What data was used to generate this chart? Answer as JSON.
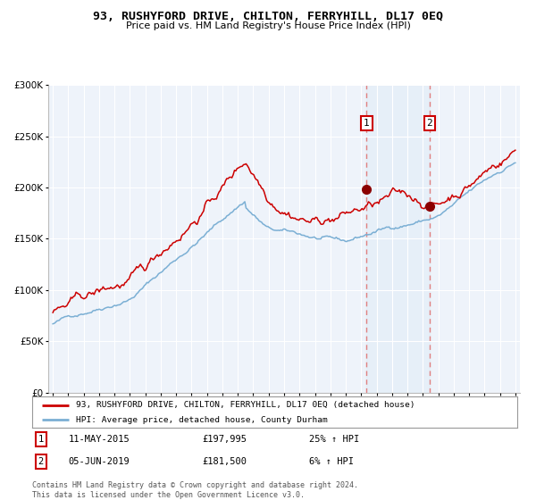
{
  "title": "93, RUSHYFORD DRIVE, CHILTON, FERRYHILL, DL17 0EQ",
  "subtitle": "Price paid vs. HM Land Registry's House Price Index (HPI)",
  "legend_line1": "93, RUSHYFORD DRIVE, CHILTON, FERRYHILL, DL17 0EQ (detached house)",
  "legend_line2": "HPI: Average price, detached house, County Durham",
  "transaction1_date": "11-MAY-2015",
  "transaction1_price": "£197,995",
  "transaction1_hpi": "25% ↑ HPI",
  "transaction2_date": "05-JUN-2019",
  "transaction2_price": "£181,500",
  "transaction2_hpi": "6% ↑ HPI",
  "footer": "Contains HM Land Registry data © Crown copyright and database right 2024.\nThis data is licensed under the Open Government Licence v3.0.",
  "hpi_color": "#7bafd4",
  "price_color": "#cc0000",
  "marker_color": "#8b0000",
  "shade_color": "#dbeaf6",
  "dashed_color": "#e08080",
  "background_color": "#eef3fa",
  "grid_color": "#ffffff",
  "ylim": [
    0,
    300000
  ],
  "yticks": [
    0,
    50000,
    100000,
    150000,
    200000,
    250000,
    300000
  ],
  "year_start": 1995,
  "year_end": 2025,
  "t1_year": 2015.36,
  "t2_year": 2019.43,
  "t1_price": 197995,
  "t2_price": 181500
}
